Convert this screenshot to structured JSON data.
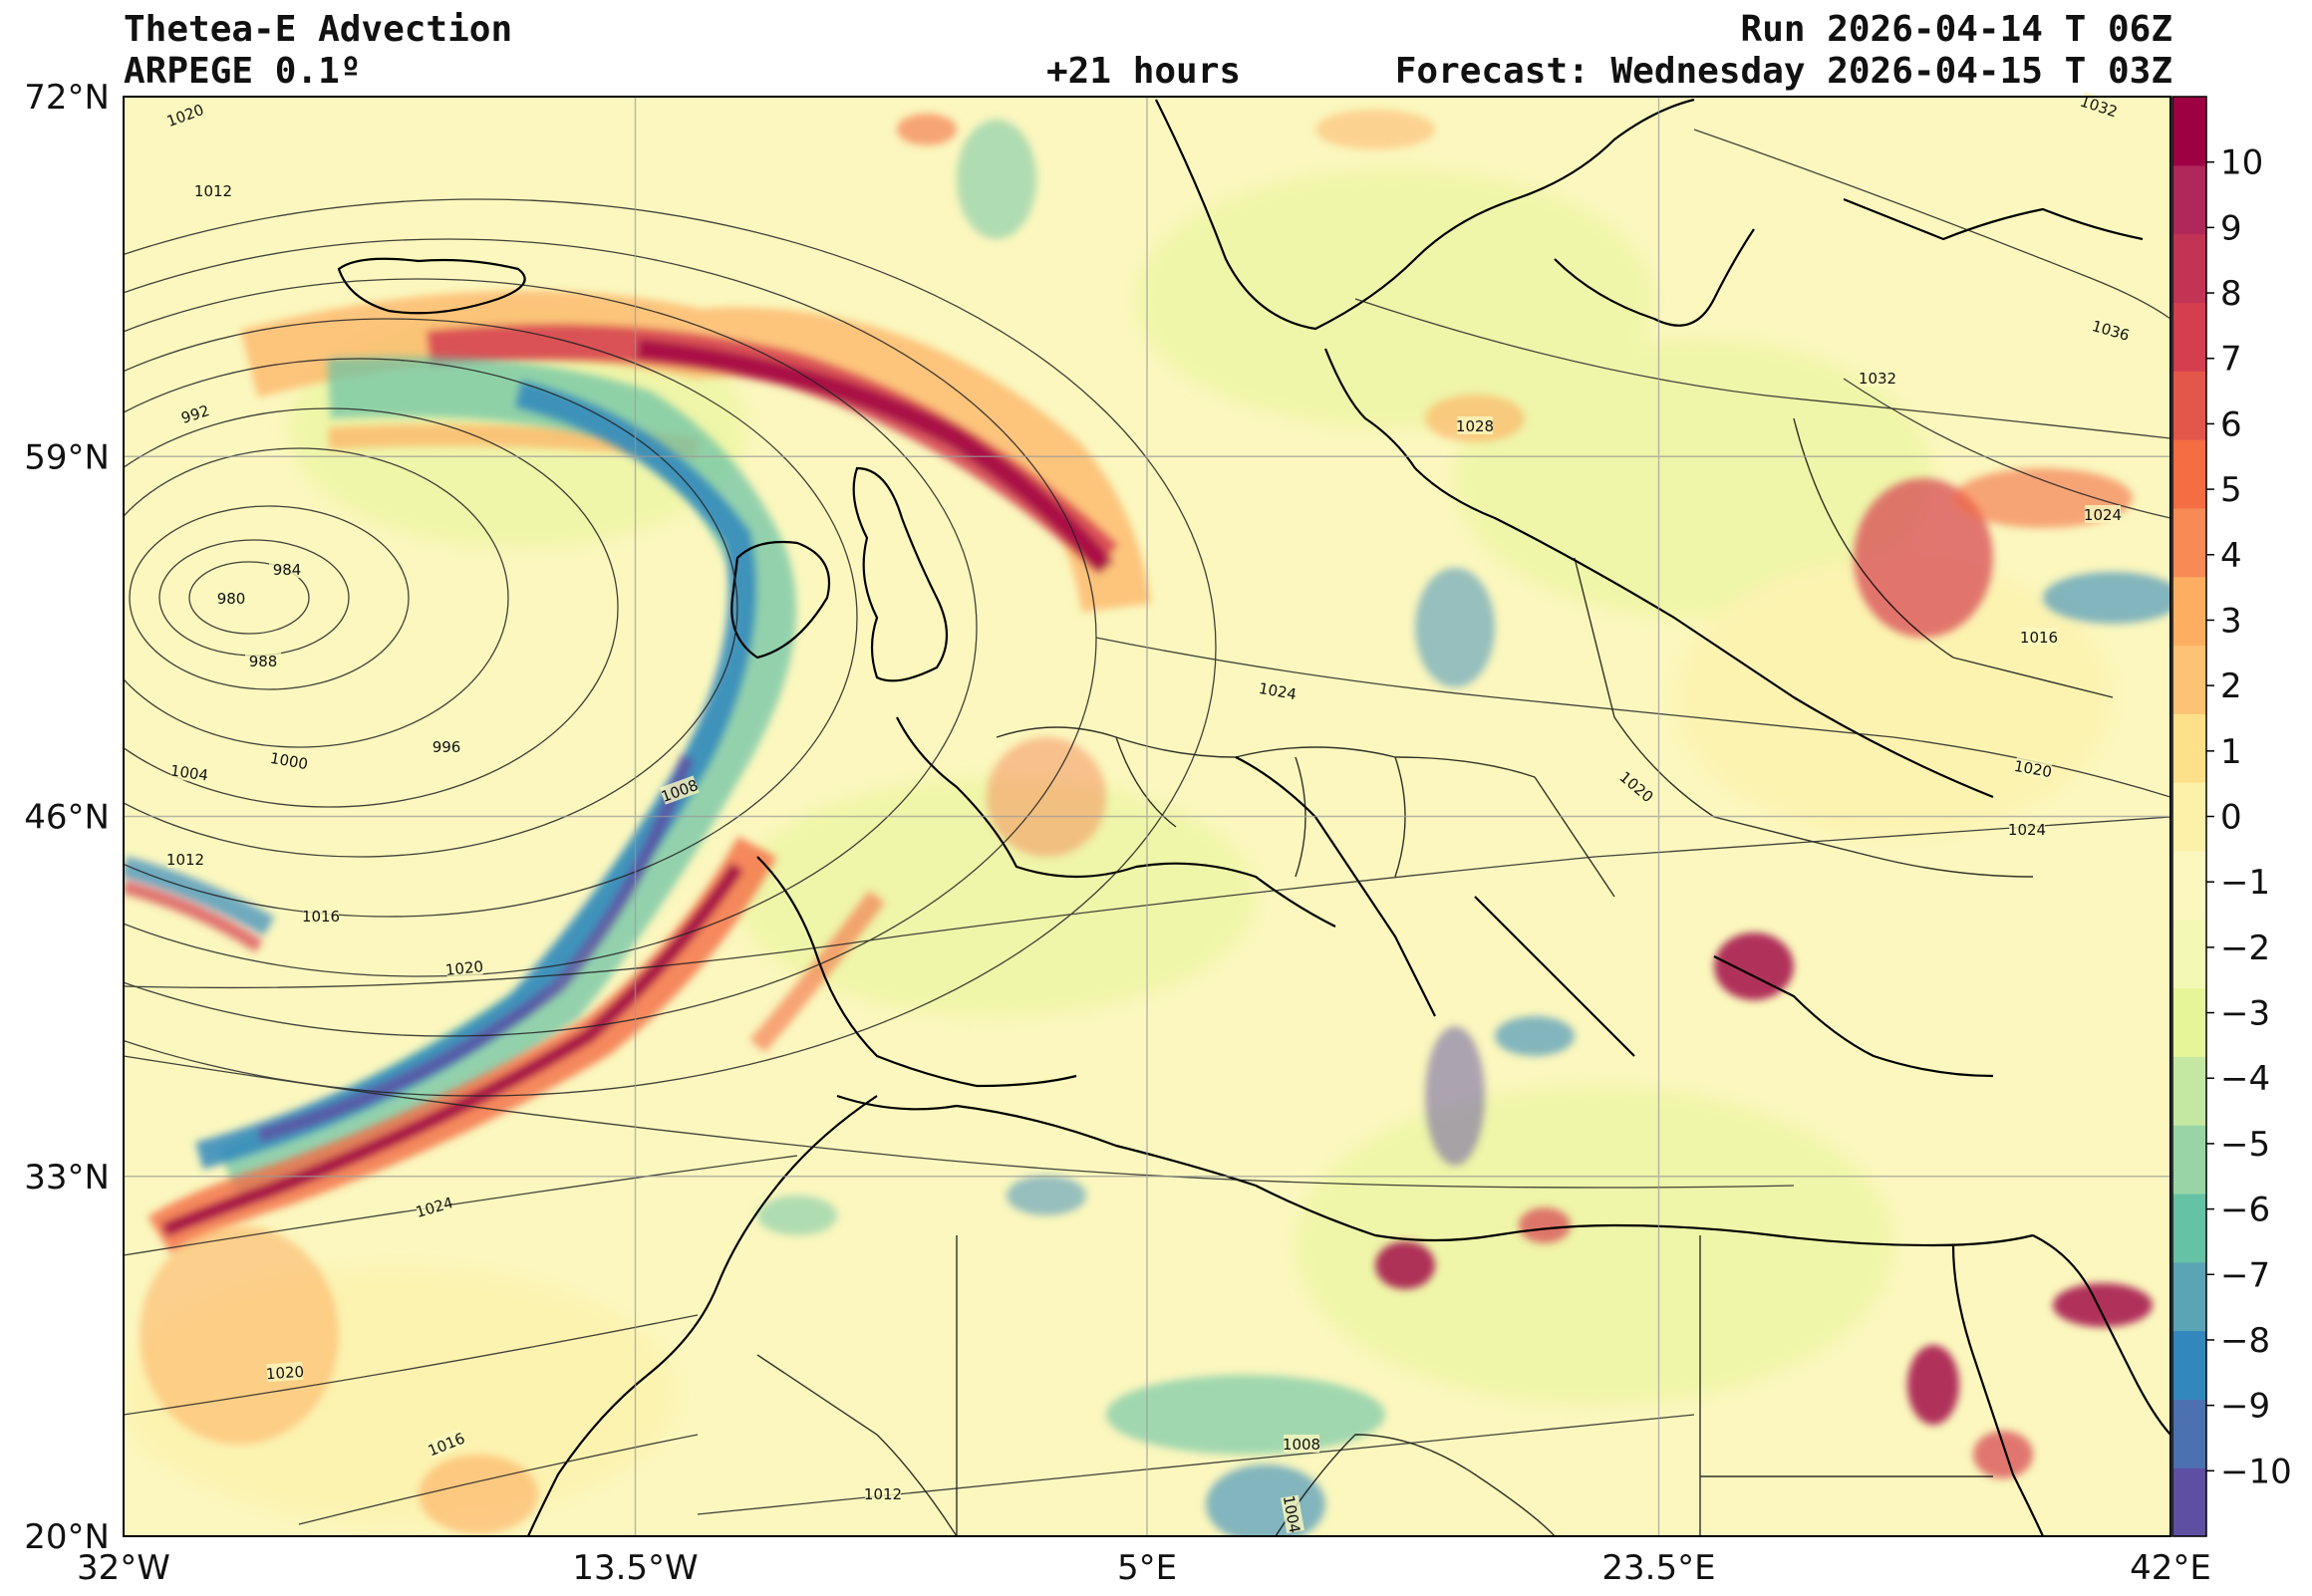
{
  "header": {
    "title": "Thetea-E Advection",
    "model": "ARPEGE 0.1º",
    "lead": "+21 hours",
    "run": "Run 2026-04-14 T 06Z",
    "forecast": "Forecast: Wednesday 2026-04-15 T 03Z"
  },
  "map": {
    "lon_range": [
      -32,
      42
    ],
    "lat_range": [
      20,
      72
    ],
    "x_ticks": [
      {
        "value": -32,
        "label": "32°W"
      },
      {
        "value": -13.5,
        "label": "13.5°W"
      },
      {
        "value": 5,
        "label": "5°E"
      },
      {
        "value": 23.5,
        "label": "23.5°E"
      },
      {
        "value": 42,
        "label": "42°E"
      }
    ],
    "y_ticks": [
      {
        "value": 72,
        "label": "72°N"
      },
      {
        "value": 59,
        "label": "59°N"
      },
      {
        "value": 46,
        "label": "46°N"
      },
      {
        "value": 33,
        "label": "33°N"
      },
      {
        "value": 20,
        "label": "20°N"
      }
    ],
    "grid": true,
    "background_color": "#fbf7be"
  },
  "colorbar": {
    "position": "right",
    "ticks": [
      "10",
      "9",
      "8",
      "7",
      "6",
      "5",
      "4",
      "3",
      "2",
      "1",
      "0",
      "−1",
      "−2",
      "−3",
      "−4",
      "−5",
      "−6",
      "−7",
      "−8",
      "−9",
      "−10"
    ],
    "range": [
      -11,
      11
    ],
    "colors": [
      "#5e4fa2",
      "#4c70b0",
      "#3288bd",
      "#5aa4b6",
      "#66c2a5",
      "#99d5a4",
      "#c4e8a2",
      "#e6f598",
      "#f3f9b4",
      "#fbf7be",
      "#fdf0a8",
      "#fee08b",
      "#fdc274",
      "#fdae61",
      "#f88a56",
      "#f46d43",
      "#e3574b",
      "#d53e4f",
      "#c23454",
      "#b0285a",
      "#9e0142"
    ]
  },
  "isobar_labels": [
    "1020",
    "1012",
    "992",
    "984",
    "980",
    "988",
    "996",
    "1000",
    "1004",
    "1008",
    "1012",
    "1016",
    "1020",
    "1024",
    "1020",
    "1016",
    "1032",
    "1036",
    "1032",
    "1028",
    "1024",
    "1024",
    "1016",
    "1020",
    "1020",
    "1024",
    "1008",
    "1012",
    "1004"
  ]
}
